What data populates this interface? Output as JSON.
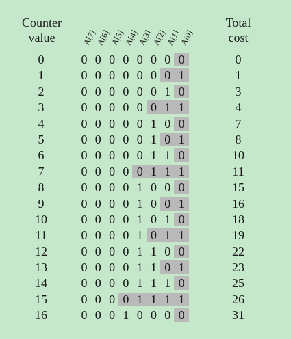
{
  "header": {
    "counter_line1": "Counter",
    "counter_line2": "value",
    "cost_line1": "Total",
    "cost_line2": "cost"
  },
  "bit_labels": [
    "A[7]",
    "A[6]",
    "A[5]",
    "A[4]",
    "A[3]",
    "A[2]",
    "A[1]",
    "A[0]"
  ],
  "colors": {
    "background": "#c5e8ca",
    "highlight": "#b9b9b9"
  },
  "rows": [
    {
      "counter": "0",
      "bits": "00000000",
      "cost": "0",
      "flipped": 1
    },
    {
      "counter": "1",
      "bits": "00000001",
      "cost": "1",
      "flipped": 2
    },
    {
      "counter": "2",
      "bits": "00000010",
      "cost": "3",
      "flipped": 1
    },
    {
      "counter": "3",
      "bits": "00000011",
      "cost": "4",
      "flipped": 3
    },
    {
      "counter": "4",
      "bits": "00000100",
      "cost": "7",
      "flipped": 1
    },
    {
      "counter": "5",
      "bits": "00000101",
      "cost": "8",
      "flipped": 2
    },
    {
      "counter": "6",
      "bits": "00000110",
      "cost": "10",
      "flipped": 1
    },
    {
      "counter": "7",
      "bits": "00000111",
      "cost": "11",
      "flipped": 4
    },
    {
      "counter": "8",
      "bits": "00001000",
      "cost": "15",
      "flipped": 1
    },
    {
      "counter": "9",
      "bits": "00001001",
      "cost": "16",
      "flipped": 2
    },
    {
      "counter": "10",
      "bits": "00001010",
      "cost": "18",
      "flipped": 1
    },
    {
      "counter": "11",
      "bits": "00001011",
      "cost": "19",
      "flipped": 3
    },
    {
      "counter": "12",
      "bits": "00001100",
      "cost": "22",
      "flipped": 1
    },
    {
      "counter": "13",
      "bits": "00001101",
      "cost": "23",
      "flipped": 2
    },
    {
      "counter": "14",
      "bits": "00001110",
      "cost": "25",
      "flipped": 1
    },
    {
      "counter": "15",
      "bits": "00001111",
      "cost": "26",
      "flipped": 5
    },
    {
      "counter": "16",
      "bits": "00010000",
      "cost": "31",
      "flipped": 1
    }
  ]
}
